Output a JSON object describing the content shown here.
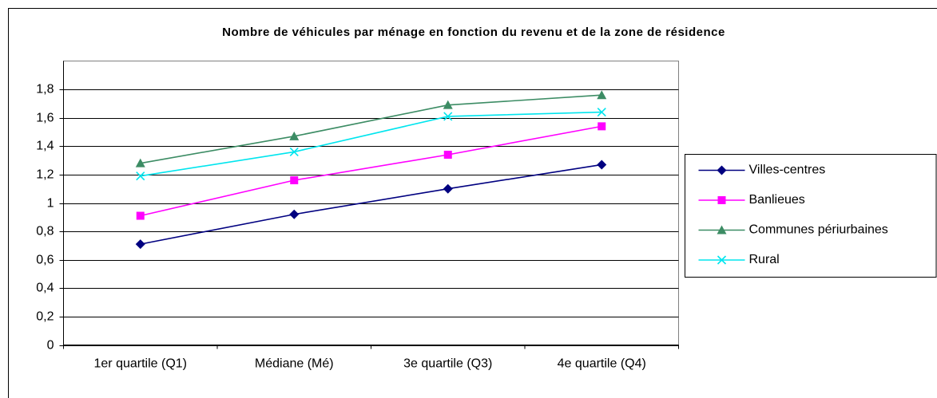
{
  "chart_data": {
    "type": "line",
    "title": "Nombre de véhicules par ménage en fonction du revenu et de la zone de résidence",
    "categories": [
      "1er quartile (Q1)",
      "Médiane (Mé)",
      "3e quartile (Q3)",
      "4e quartile (Q4)"
    ],
    "series": [
      {
        "name": "Villes-centres",
        "color": "#000080",
        "marker": "diamond",
        "values": [
          0.71,
          0.92,
          1.1,
          1.27
        ]
      },
      {
        "name": "Banlieues",
        "color": "#ff00ff",
        "marker": "square",
        "values": [
          0.91,
          1.16,
          1.34,
          1.54
        ]
      },
      {
        "name": "Communes périurbaines",
        "color": "#3c8c64",
        "marker": "triangle",
        "values": [
          1.28,
          1.47,
          1.69,
          1.76
        ]
      },
      {
        "name": "Rural",
        "color": "#00e5ee",
        "marker": "x",
        "values": [
          1.19,
          1.36,
          1.61,
          1.64
        ]
      }
    ],
    "ylim": [
      0,
      2
    ],
    "yticks": [
      0,
      {
        "value": 0.2,
        "label": "0,2"
      },
      {
        "value": 0.4,
        "label": "0,4"
      },
      {
        "value": 0.6,
        "label": "0,6"
      },
      {
        "value": 0.8,
        "label": "0,8"
      },
      1,
      {
        "value": 1.2,
        "label": "1,2"
      },
      {
        "value": 1.4,
        "label": "1,4"
      },
      {
        "value": 1.6,
        "label": "1,6"
      },
      {
        "value": 1.8,
        "label": "1,8"
      }
    ],
    "grid": true,
    "legend": "right"
  }
}
